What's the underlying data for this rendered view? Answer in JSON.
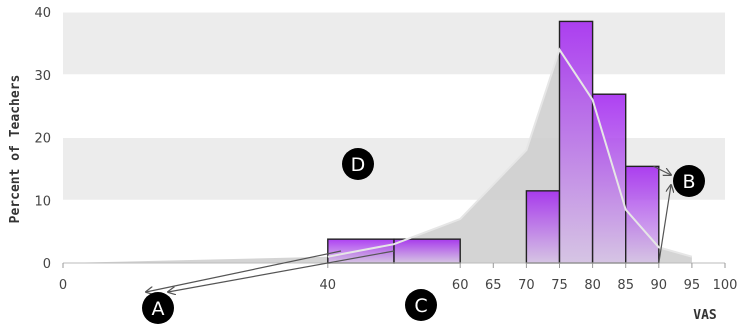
{
  "chart_data": {
    "type": "bar",
    "xlabel": "VAS",
    "ylabel": "Percent of Teachers",
    "xlim": [
      0,
      100
    ],
    "ylim": [
      0,
      40
    ],
    "x_ticks": [
      "0",
      "40",
      "60",
      "65",
      "70",
      "75",
      "80",
      "85",
      "90",
      "95",
      "100"
    ],
    "y_ticks": [
      "0",
      "10",
      "20",
      "30",
      "40"
    ],
    "bins": [
      {
        "x0": 40,
        "x1": 50,
        "value": 3.8
      },
      {
        "x0": 50,
        "x1": 60,
        "value": 3.8
      },
      {
        "x0": 70,
        "x1": 75,
        "value": 11.5
      },
      {
        "x0": 75,
        "x1": 80,
        "value": 38.5
      },
      {
        "x0": 80,
        "x1": 85,
        "value": 26.9
      },
      {
        "x0": 85,
        "x1": 90,
        "value": 15.4
      }
    ],
    "distribution_curve": [
      {
        "x": 0,
        "y": 0
      },
      {
        "x": 40,
        "y": 1
      },
      {
        "x": 50,
        "y": 3
      },
      {
        "x": 60,
        "y": 7
      },
      {
        "x": 70,
        "y": 18
      },
      {
        "x": 75,
        "y": 34
      },
      {
        "x": 80,
        "y": 26
      },
      {
        "x": 85,
        "y": 8.5
      },
      {
        "x": 90,
        "y": 2.5
      },
      {
        "x": 95,
        "y": 1
      },
      {
        "x": 95,
        "y": 0
      }
    ],
    "annotations": [
      {
        "label": "A",
        "points_to": [
          42,
          50
        ]
      },
      {
        "label": "B",
        "points_to": [
          88,
          90
        ]
      },
      {
        "label": "C"
      },
      {
        "label": "D"
      }
    ],
    "grid": true,
    "colors": {
      "bar_top": "#a020f0",
      "bar_bottom": "#d6c2e6",
      "bar_stroke": "#222222",
      "curve_fill": "#cfcfcf",
      "curve_line": "#e6e6e6",
      "plot_band": "#ececec",
      "badge": "#000000",
      "arrow": "#555555"
    }
  }
}
